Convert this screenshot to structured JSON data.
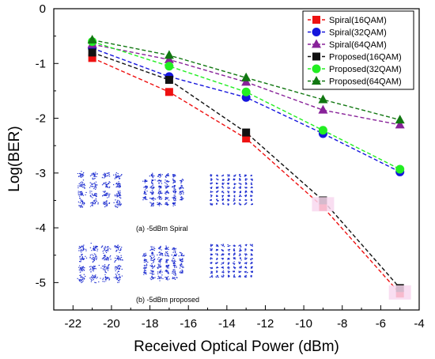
{
  "chart_data": {
    "type": "line",
    "xlabel": "Received Optical Power (dBm)",
    "ylabel": "Log(BER)",
    "xlim": [
      -23,
      -4
    ],
    "ylim": [
      -5.5,
      0
    ],
    "xticks": [
      -22,
      -20,
      -18,
      -16,
      -14,
      -12,
      -10,
      -8,
      -6,
      -4
    ],
    "yticks": [
      0,
      -1,
      -2,
      -3,
      -4,
      -5
    ],
    "grid": false,
    "legend_position": "top-right",
    "series": [
      {
        "name": "Spiral(16QAM)",
        "color": "#ee1111",
        "marker": "square",
        "x": [
          -21,
          -17,
          -13,
          -9,
          -5
        ],
        "y": [
          -0.9,
          -1.52,
          -2.37,
          -3.62,
          -5.2
        ]
      },
      {
        "name": "Spiral(32QAM)",
        "color": "#1515dd",
        "marker": "circle",
        "x": [
          -21,
          -17,
          -13,
          -9,
          -5
        ],
        "y": [
          -0.72,
          -1.24,
          -1.62,
          -2.28,
          -2.98
        ]
      },
      {
        "name": "Spiral(64QAM)",
        "color": "#882299",
        "marker": "triangle",
        "x": [
          -21,
          -17,
          -13,
          -9,
          -5
        ],
        "y": [
          -0.65,
          -0.93,
          -1.34,
          -1.85,
          -2.12
        ]
      },
      {
        "name": "Proposed(16QAM)",
        "color": "#111111",
        "marker": "square",
        "x": [
          -21,
          -17,
          -13,
          -9,
          -5
        ],
        "y": [
          -0.8,
          -1.3,
          -2.26,
          -3.5,
          -5.1
        ]
      },
      {
        "name": "Proposed(32QAM)",
        "color": "#22ee22",
        "marker": "circle",
        "x": [
          -21,
          -17,
          -13,
          -9,
          -5
        ],
        "y": [
          -0.6,
          -1.05,
          -1.52,
          -2.22,
          -2.93
        ]
      },
      {
        "name": "Proposed(64QAM)",
        "color": "#117711",
        "marker": "triangle",
        "x": [
          -21,
          -17,
          -13,
          -9,
          -5
        ],
        "y": [
          -0.57,
          -0.85,
          -1.26,
          -1.66,
          -2.03
        ]
      }
    ],
    "inset": {
      "caption_a": "(a)  -5dBm Spiral",
      "caption_b": "(b)  -5dBm proposed",
      "constellations_a": [
        16,
        32,
        64
      ],
      "constellations_b": [
        16,
        32,
        64
      ]
    }
  }
}
